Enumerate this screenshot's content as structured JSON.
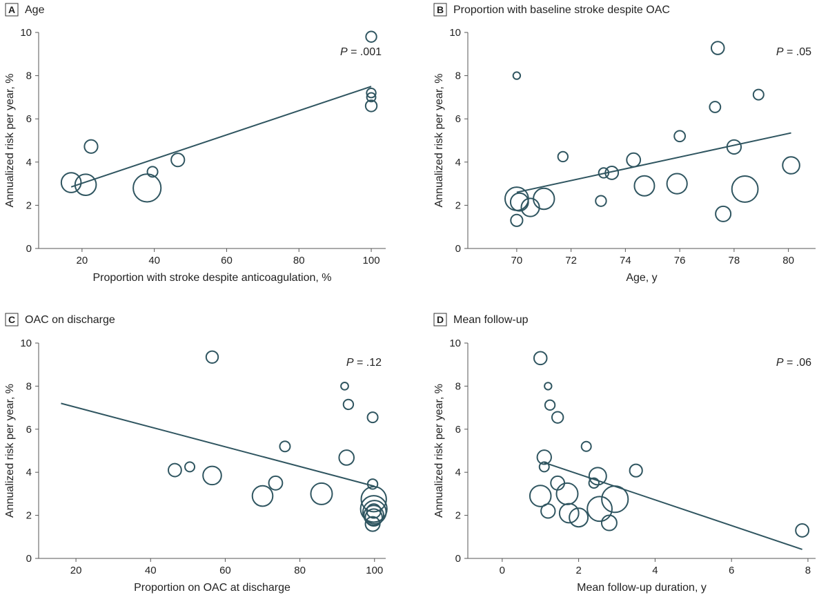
{
  "colors": {
    "mark": "#2f5560",
    "axis": "#555555",
    "text": "#222222"
  },
  "chart_data": [
    {
      "id": "A",
      "type": "scatter",
      "letter": "A",
      "title": "Age",
      "xlabel": "Proportion with stroke despite anticoagulation, %",
      "ylabel": "Annualized risk per year, %",
      "xlim": [
        8,
        104
      ],
      "ylim": [
        0,
        10
      ],
      "xticks": [
        20,
        40,
        60,
        80,
        100
      ],
      "yticks": [
        0,
        2,
        4,
        6,
        8,
        10
      ],
      "p_prefix": "P",
      "p_value": " = .001",
      "fit_line": [
        [
          17,
          2.85
        ],
        [
          100,
          7.5
        ]
      ],
      "points": [
        {
          "x": 100,
          "y": 9.8,
          "w": 0.5
        },
        {
          "x": 100,
          "y": 7.2,
          "w": 0.3
        },
        {
          "x": 100,
          "y": 7.0,
          "w": 0.25
        },
        {
          "x": 100,
          "y": 6.6,
          "w": 0.6
        },
        {
          "x": 22.5,
          "y": 4.72,
          "w": 1.0
        },
        {
          "x": 46.5,
          "y": 4.1,
          "w": 1.0
        },
        {
          "x": 39.5,
          "y": 3.55,
          "w": 0.45
        },
        {
          "x": 17,
          "y": 3.05,
          "w": 3.0
        },
        {
          "x": 21,
          "y": 2.95,
          "w": 3.6
        },
        {
          "x": 38,
          "y": 2.8,
          "w": 7.0
        }
      ]
    },
    {
      "id": "B",
      "type": "scatter",
      "letter": "B",
      "title": "Proportion with baseline stroke despite OAC",
      "xlabel": "Age, y",
      "ylabel": "Annualized risk per year, %",
      "xlim": [
        68.2,
        81
      ],
      "ylim": [
        0,
        10
      ],
      "xticks": [
        70,
        72,
        74,
        76,
        78,
        80
      ],
      "yticks": [
        0,
        2,
        4,
        6,
        8,
        10
      ],
      "p_prefix": "P",
      "p_value": " = .05",
      "fit_line": [
        [
          70,
          2.6
        ],
        [
          80.1,
          5.35
        ]
      ],
      "points": [
        {
          "x": 77.4,
          "y": 9.28,
          "w": 0.9
        },
        {
          "x": 70,
          "y": 8.0,
          "w": 0.1
        },
        {
          "x": 78.9,
          "y": 7.12,
          "w": 0.45
        },
        {
          "x": 77.3,
          "y": 6.55,
          "w": 0.55
        },
        {
          "x": 76,
          "y": 5.2,
          "w": 0.55
        },
        {
          "x": 78,
          "y": 4.7,
          "w": 1.2
        },
        {
          "x": 71.7,
          "y": 4.25,
          "w": 0.4
        },
        {
          "x": 74.3,
          "y": 4.1,
          "w": 1.1
        },
        {
          "x": 80.1,
          "y": 3.85,
          "w": 2.0
        },
        {
          "x": 73.2,
          "y": 3.5,
          "w": 0.4
        },
        {
          "x": 73.5,
          "y": 3.5,
          "w": 0.95
        },
        {
          "x": 74.7,
          "y": 2.9,
          "w": 3.1
        },
        {
          "x": 75.9,
          "y": 3.0,
          "w": 3.2
        },
        {
          "x": 78.4,
          "y": 2.75,
          "w": 6.0
        },
        {
          "x": 70,
          "y": 2.3,
          "w": 4.6
        },
        {
          "x": 71,
          "y": 2.3,
          "w": 3.5
        },
        {
          "x": 70.1,
          "y": 2.15,
          "w": 2.3
        },
        {
          "x": 70.5,
          "y": 1.9,
          "w": 2.4
        },
        {
          "x": 73.1,
          "y": 2.2,
          "w": 0.5
        },
        {
          "x": 77.6,
          "y": 1.6,
          "w": 1.5
        },
        {
          "x": 70,
          "y": 1.3,
          "w": 0.7
        }
      ]
    },
    {
      "id": "C",
      "type": "scatter",
      "letter": "C",
      "title": "OAC on discharge",
      "xlabel": "Proportion on OAC at discharge",
      "ylabel": "Annualized risk per year, %",
      "xlim": [
        10,
        103
      ],
      "ylim": [
        0,
        10
      ],
      "xticks": [
        20,
        40,
        60,
        80,
        100
      ],
      "yticks": [
        0,
        2,
        4,
        6,
        8,
        10
      ],
      "p_prefix": "P",
      "p_value": " = .12",
      "fit_line": [
        [
          16,
          7.2
        ],
        [
          100,
          3.35
        ]
      ],
      "points": [
        {
          "x": 56.5,
          "y": 9.35,
          "w": 0.75
        },
        {
          "x": 92,
          "y": 8.0,
          "w": 0.12
        },
        {
          "x": 93,
          "y": 7.15,
          "w": 0.4
        },
        {
          "x": 99.5,
          "y": 6.55,
          "w": 0.45
        },
        {
          "x": 76,
          "y": 5.2,
          "w": 0.45
        },
        {
          "x": 92.5,
          "y": 4.68,
          "w": 1.4
        },
        {
          "x": 46.5,
          "y": 4.1,
          "w": 0.95
        },
        {
          "x": 50.5,
          "y": 4.25,
          "w": 0.35
        },
        {
          "x": 56.5,
          "y": 3.85,
          "w": 2.5
        },
        {
          "x": 99.5,
          "y": 3.45,
          "w": 0.4
        },
        {
          "x": 73.5,
          "y": 3.5,
          "w": 1.1
        },
        {
          "x": 70,
          "y": 2.9,
          "w": 3.3
        },
        {
          "x": 85.8,
          "y": 3.0,
          "w": 3.7
        },
        {
          "x": 99.8,
          "y": 2.75,
          "w": 5.5
        },
        {
          "x": 99.8,
          "y": 2.3,
          "w": 6.2
        },
        {
          "x": 100,
          "y": 2.15,
          "w": 4.5
        },
        {
          "x": 99.8,
          "y": 2.0,
          "w": 3.0
        },
        {
          "x": 99.8,
          "y": 1.9,
          "w": 2.0
        },
        {
          "x": 99.8,
          "y": 2.2,
          "w": 1.2
        },
        {
          "x": 99.5,
          "y": 1.6,
          "w": 1.3
        }
      ]
    },
    {
      "id": "D",
      "type": "scatter",
      "letter": "D",
      "title": "Mean follow-up",
      "xlabel": "Mean follow-up duration, y",
      "ylabel": "Annualized risk per year, %",
      "xlim": [
        -0.9,
        8.2
      ],
      "ylim": [
        0,
        10
      ],
      "xticks": [
        0,
        2,
        4,
        6,
        8
      ],
      "yticks": [
        0,
        2,
        4,
        6,
        8,
        10
      ],
      "p_prefix": "P",
      "p_value": " = .06",
      "fit_line": [
        [
          1.1,
          4.45
        ],
        [
          7.85,
          0.42
        ]
      ],
      "points": [
        {
          "x": 1.0,
          "y": 9.3,
          "w": 0.9
        },
        {
          "x": 1.2,
          "y": 8.0,
          "w": 0.1
        },
        {
          "x": 1.25,
          "y": 7.12,
          "w": 0.4
        },
        {
          "x": 1.45,
          "y": 6.55,
          "w": 0.6
        },
        {
          "x": 2.2,
          "y": 5.2,
          "w": 0.35
        },
        {
          "x": 1.1,
          "y": 4.7,
          "w": 1.2
        },
        {
          "x": 1.1,
          "y": 4.25,
          "w": 0.35
        },
        {
          "x": 3.5,
          "y": 4.08,
          "w": 0.85
        },
        {
          "x": 2.5,
          "y": 3.82,
          "w": 2.1
        },
        {
          "x": 1.45,
          "y": 3.5,
          "w": 1.1
        },
        {
          "x": 2.4,
          "y": 3.5,
          "w": 0.4
        },
        {
          "x": 1.0,
          "y": 2.9,
          "w": 3.6
        },
        {
          "x": 1.7,
          "y": 3.0,
          "w": 3.7
        },
        {
          "x": 2.95,
          "y": 2.75,
          "w": 6.2
        },
        {
          "x": 2.55,
          "y": 2.3,
          "w": 5.3
        },
        {
          "x": 1.2,
          "y": 2.2,
          "w": 1.2
        },
        {
          "x": 1.75,
          "y": 2.1,
          "w": 2.8
        },
        {
          "x": 2.0,
          "y": 1.9,
          "w": 2.6
        },
        {
          "x": 2.8,
          "y": 1.65,
          "w": 1.5
        },
        {
          "x": 7.85,
          "y": 1.3,
          "w": 0.95
        }
      ]
    }
  ]
}
